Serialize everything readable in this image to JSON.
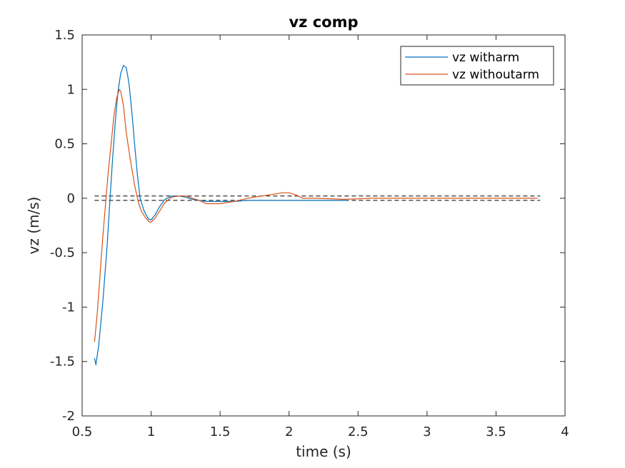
{
  "chart_data": {
    "type": "line",
    "title": "vz comp",
    "xlabel": "time (s)",
    "ylabel": "vz (m/s)",
    "xlim": [
      0.5,
      4
    ],
    "ylim": [
      -2,
      1.5
    ],
    "xticks": [
      0.5,
      1,
      1.5,
      2,
      2.5,
      3,
      3.5,
      4
    ],
    "xtick_labels": [
      "0.5",
      "1",
      "1.5",
      "2",
      "2.5",
      "3",
      "3.5",
      "4"
    ],
    "yticks": [
      -2,
      -1.5,
      -1,
      -0.5,
      0,
      0.5,
      1,
      1.5
    ],
    "ytick_labels": [
      "-2",
      "-1.5",
      "-1",
      "-0.5",
      "0",
      "0.5",
      "1",
      "1.5"
    ],
    "grid": false,
    "legend_position": "top-right",
    "series": [
      {
        "name": "vz witharm",
        "color": "#0072BD",
        "x": [
          0.59,
          0.6,
          0.62,
          0.65,
          0.68,
          0.7,
          0.72,
          0.74,
          0.76,
          0.78,
          0.8,
          0.82,
          0.84,
          0.86,
          0.88,
          0.9,
          0.92,
          0.95,
          0.98,
          1.0,
          1.03,
          1.06,
          1.1,
          1.15,
          1.2,
          1.25,
          1.3,
          1.35,
          1.4,
          1.45,
          1.5,
          1.6,
          1.7,
          1.8,
          1.9,
          2.0,
          2.1,
          2.2,
          2.3,
          2.42
        ],
        "y": [
          -1.47,
          -1.53,
          -1.35,
          -0.95,
          -0.45,
          -0.05,
          0.35,
          0.7,
          0.98,
          1.15,
          1.22,
          1.2,
          1.05,
          0.8,
          0.5,
          0.22,
          0.0,
          -0.12,
          -0.19,
          -0.2,
          -0.15,
          -0.08,
          -0.01,
          0.02,
          0.02,
          0.01,
          -0.01,
          -0.02,
          -0.03,
          -0.03,
          -0.03,
          -0.03,
          -0.02,
          -0.02,
          -0.02,
          -0.02,
          -0.02,
          -0.02,
          -0.02,
          -0.02
        ]
      },
      {
        "name": "vz withoutarm",
        "color": "#D95319",
        "x": [
          0.59,
          0.61,
          0.63,
          0.65,
          0.67,
          0.69,
          0.71,
          0.73,
          0.75,
          0.77,
          0.78,
          0.8,
          0.82,
          0.85,
          0.88,
          0.91,
          0.93,
          0.96,
          0.99,
          1.0,
          1.03,
          1.06,
          1.1,
          1.15,
          1.2,
          1.25,
          1.3,
          1.35,
          1.4,
          1.5,
          1.6,
          1.7,
          1.8,
          1.85,
          1.9,
          1.95,
          2.0,
          2.05,
          2.1,
          2.2,
          2.4,
          2.6,
          3.0,
          3.4,
          3.8
        ],
        "y": [
          -1.32,
          -1.05,
          -0.7,
          -0.35,
          -0.05,
          0.25,
          0.5,
          0.75,
          0.92,
          1.0,
          0.98,
          0.85,
          0.6,
          0.35,
          0.12,
          -0.05,
          -0.12,
          -0.18,
          -0.22,
          -0.22,
          -0.18,
          -0.12,
          -0.04,
          0.01,
          0.02,
          0.02,
          0.0,
          -0.02,
          -0.05,
          -0.05,
          -0.03,
          0.0,
          0.02,
          0.03,
          0.04,
          0.05,
          0.05,
          0.03,
          0.0,
          0.0,
          -0.01,
          0.0,
          0.0,
          0.0,
          0.0
        ]
      }
    ],
    "reference_lines": [
      {
        "y": 0.02,
        "x_range": [
          0.59,
          3.82
        ],
        "style": "dashed",
        "color": "#000000"
      },
      {
        "y": -0.02,
        "x_range": [
          0.59,
          3.82
        ],
        "style": "dashed",
        "color": "#000000"
      }
    ]
  }
}
